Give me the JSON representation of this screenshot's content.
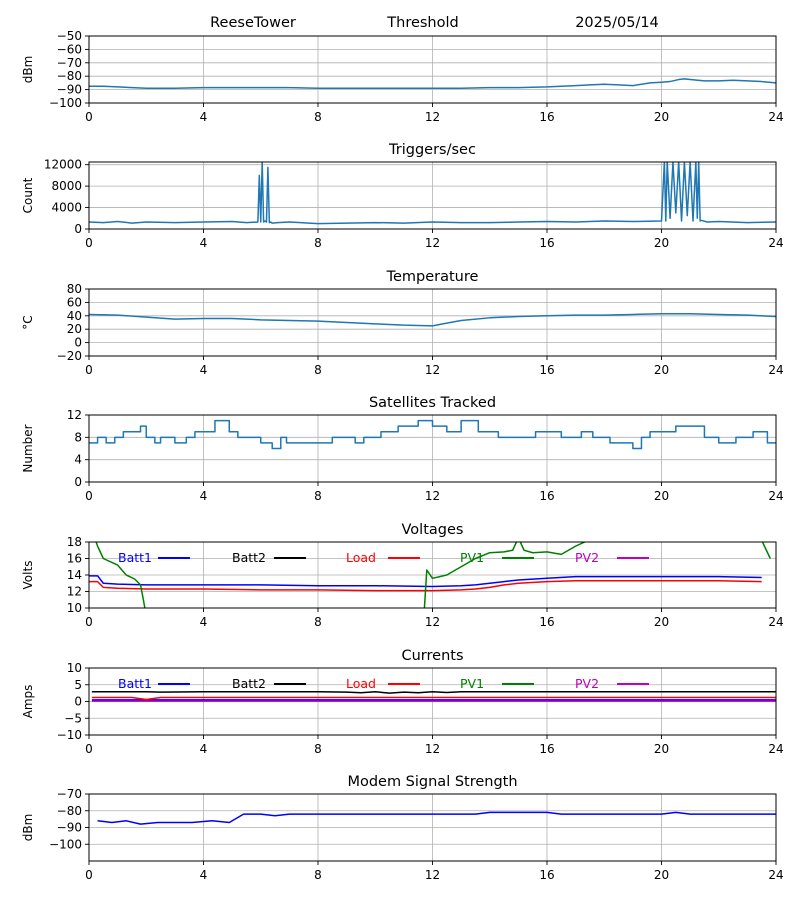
{
  "header": {
    "station": "ReeseTower",
    "measure": "Threshold",
    "date": "2025/05/14"
  },
  "colors": {
    "default_line": "#1f77b4",
    "grid": "#b0b0b0",
    "axis": "#000000"
  },
  "chart_data": [
    {
      "id": "threshold",
      "type": "line",
      "title": "",
      "ylabel": "dBm",
      "xlim": [
        0,
        24
      ],
      "ylim": [
        -100,
        -50
      ],
      "xticks": [
        0,
        4,
        8,
        12,
        16,
        20,
        24
      ],
      "yticks": [
        -100,
        -90,
        -80,
        -70,
        -60,
        -50
      ],
      "tick_labels": [
        "−100",
        "−90",
        "−80",
        "−70",
        "−60",
        "−50"
      ],
      "grid": true,
      "series": [
        {
          "color": "#1f77b4",
          "x": [
            0,
            0.5,
            1,
            2,
            3,
            4,
            5,
            6,
            7,
            8,
            9,
            10,
            11,
            12,
            13,
            14,
            15,
            16,
            16.5,
            17,
            17.5,
            18,
            18.5,
            19,
            19.3,
            19.6,
            20,
            20.3,
            20.6,
            20.8,
            21,
            21.5,
            22,
            22.5,
            23,
            23.5,
            24
          ],
          "y": [
            -87.5,
            -87.5,
            -88,
            -89,
            -89,
            -88.5,
            -88.5,
            -88.5,
            -88.5,
            -89,
            -89,
            -89,
            -89,
            -89,
            -89,
            -88.5,
            -88.5,
            -88,
            -87.5,
            -87,
            -86.5,
            -86,
            -86.5,
            -87,
            -86,
            -85,
            -84.5,
            -84,
            -82.5,
            -82,
            -82.5,
            -83.5,
            -83.5,
            -83,
            -83.5,
            -84,
            -85
          ]
        }
      ]
    },
    {
      "id": "triggers",
      "type": "line",
      "title": "Triggers/sec",
      "ylabel": "Count",
      "xlim": [
        0,
        24
      ],
      "ylim": [
        0,
        12500
      ],
      "xticks": [
        0,
        4,
        8,
        12,
        16,
        20,
        24
      ],
      "yticks": [
        0,
        4000,
        8000,
        12000
      ],
      "tick_labels": [
        "0",
        "4000",
        "8000",
        "12000"
      ],
      "grid": true,
      "series": [
        {
          "color": "#1f77b4",
          "x": [
            0,
            0.5,
            1,
            1.5,
            2,
            3,
            4,
            5,
            5.5,
            5.9,
            5.95,
            6.0,
            6.05,
            6.1,
            6.15,
            6.2,
            6.25,
            6.3,
            6.35,
            6.4,
            6.6,
            7,
            8,
            9,
            10,
            11,
            12,
            13,
            14,
            15,
            16,
            17,
            18,
            19,
            20,
            20.1,
            20.15,
            20.2,
            20.3,
            20.4,
            20.5,
            20.6,
            20.7,
            20.8,
            20.9,
            21.0,
            21.1,
            21.2,
            21.25,
            21.3,
            21.35,
            21.4,
            21.6,
            22,
            23,
            24
          ],
          "y": [
            1300,
            1200,
            1400,
            1100,
            1300,
            1200,
            1300,
            1400,
            1200,
            1300,
            10000,
            1300,
            12500,
            1300,
            1500,
            1300,
            11500,
            1200,
            1300,
            1100,
            1200,
            1300,
            1000,
            1100,
            1200,
            1100,
            1300,
            1200,
            1200,
            1300,
            1400,
            1300,
            1500,
            1400,
            1500,
            12500,
            1500,
            12500,
            2000,
            12500,
            3000,
            12500,
            1500,
            12500,
            2500,
            12500,
            1500,
            12500,
            2000,
            12500,
            1500,
            1600,
            1300,
            1400,
            1200,
            1300
          ]
        }
      ]
    },
    {
      "id": "temperature",
      "type": "line",
      "title": "Temperature",
      "ylabel": "°C",
      "xlim": [
        0,
        24
      ],
      "ylim": [
        -20,
        80
      ],
      "xticks": [
        0,
        4,
        8,
        12,
        16,
        20,
        24
      ],
      "yticks": [
        -20,
        0,
        20,
        40,
        60,
        80
      ],
      "tick_labels": [
        "−20",
        "0",
        "20",
        "40",
        "60",
        "80"
      ],
      "grid": true,
      "series": [
        {
          "color": "#1f77b4",
          "x": [
            0,
            1,
            2,
            3,
            4,
            5,
            6,
            7,
            8,
            9,
            10,
            11,
            12,
            12.5,
            13,
            14,
            15,
            16,
            17,
            18,
            19,
            20,
            21,
            22,
            23,
            24
          ],
          "y": [
            42,
            41,
            38,
            35,
            36,
            36,
            34,
            33,
            32,
            30,
            28,
            26,
            25,
            29,
            33,
            37,
            39,
            40,
            41,
            41,
            42,
            43,
            43,
            42,
            41,
            39
          ]
        }
      ]
    },
    {
      "id": "satellites",
      "type": "line",
      "title": "Satellites Tracked",
      "ylabel": "Number",
      "xlim": [
        0,
        24
      ],
      "ylim": [
        0,
        12
      ],
      "xticks": [
        0,
        4,
        8,
        12,
        16,
        20,
        24
      ],
      "yticks": [
        0,
        4,
        8,
        12
      ],
      "tick_labels": [
        "0",
        "4",
        "8",
        "12"
      ],
      "grid": true,
      "series": [
        {
          "color": "#1f77b4",
          "x": [
            0,
            0.3,
            0.3,
            0.6,
            0.6,
            0.9,
            0.9,
            1.2,
            1.2,
            1.8,
            1.8,
            2.0,
            2.0,
            2.3,
            2.3,
            2.5,
            2.5,
            3.0,
            3.0,
            3.4,
            3.4,
            3.7,
            3.7,
            4.4,
            4.4,
            4.9,
            4.9,
            5.2,
            5.2,
            6.0,
            6.0,
            6.4,
            6.4,
            6.7,
            6.7,
            6.9,
            6.9,
            8.5,
            8.5,
            9.3,
            9.3,
            9.6,
            9.6,
            10.2,
            10.2,
            10.8,
            10.8,
            11.5,
            11.5,
            12.0,
            12.0,
            12.5,
            12.5,
            13.0,
            13.0,
            13.6,
            13.6,
            14.3,
            14.3,
            15.1,
            15.1,
            15.6,
            15.6,
            16.5,
            16.5,
            17.2,
            17.2,
            17.6,
            17.6,
            18.2,
            18.2,
            19.0,
            19.0,
            19.3,
            19.3,
            19.6,
            19.6,
            20.5,
            20.5,
            21.5,
            21.5,
            22.0,
            22.0,
            22.6,
            22.6,
            23.2,
            23.2,
            23.7,
            23.7,
            24.0
          ],
          "y": [
            7,
            7,
            8,
            8,
            7,
            7,
            8,
            8,
            9,
            9,
            10,
            10,
            8,
            8,
            7,
            7,
            8,
            8,
            7,
            7,
            8,
            8,
            9,
            9,
            11,
            11,
            9,
            9,
            8,
            8,
            7,
            7,
            6,
            6,
            8,
            8,
            7,
            7,
            8,
            8,
            7,
            7,
            8,
            8,
            9,
            9,
            10,
            10,
            11,
            11,
            10,
            10,
            9,
            9,
            11,
            11,
            9,
            9,
            8,
            8,
            8,
            8,
            9,
            9,
            8,
            8,
            9,
            9,
            8,
            8,
            7,
            7,
            6,
            6,
            8,
            8,
            9,
            9,
            10,
            10,
            8,
            8,
            7,
            7,
            8,
            8,
            9,
            9,
            7,
            7
          ]
        }
      ]
    },
    {
      "id": "voltages",
      "type": "line",
      "title": "Voltages",
      "ylabel": "Volts",
      "xlim": [
        0,
        24
      ],
      "ylim": [
        10,
        18
      ],
      "xticks": [
        0,
        4,
        8,
        12,
        16,
        20,
        24
      ],
      "yticks": [
        10,
        12,
        14,
        16,
        18
      ],
      "tick_labels": [
        "10",
        "12",
        "14",
        "16",
        "18"
      ],
      "grid": true,
      "series": [
        {
          "name": "Batt1",
          "color": "#0000ff",
          "x": [
            0,
            0.3,
            0.5,
            1,
            2,
            4,
            6,
            8,
            10,
            12,
            13,
            13.5,
            14,
            14.5,
            15,
            16,
            17,
            18,
            20,
            22,
            23.5
          ],
          "y": [
            13.9,
            13.9,
            13.0,
            12.9,
            12.8,
            12.8,
            12.8,
            12.7,
            12.7,
            12.6,
            12.7,
            12.8,
            13.0,
            13.2,
            13.4,
            13.6,
            13.8,
            13.8,
            13.8,
            13.8,
            13.7
          ]
        },
        {
          "name": "Batt2",
          "color": "#000000",
          "x": [],
          "y": []
        },
        {
          "name": "Load",
          "color": "#ff0000",
          "x": [
            0,
            0.3,
            0.5,
            1,
            2,
            4,
            6,
            8,
            10,
            12,
            13,
            13.5,
            14,
            14.5,
            15,
            16,
            17,
            18,
            20,
            22,
            23.5
          ],
          "y": [
            13.2,
            13.2,
            12.5,
            12.4,
            12.3,
            12.3,
            12.2,
            12.2,
            12.1,
            12.1,
            12.2,
            12.3,
            12.5,
            12.8,
            13.0,
            13.2,
            13.3,
            13.3,
            13.3,
            13.3,
            13.2
          ]
        },
        {
          "name": "PV1",
          "color": "#008000",
          "x": [
            0.2,
            0.3,
            0.5,
            1.0,
            1.3,
            1.6,
            1.8,
            1.9,
            2.0,
            11.7,
            11.8,
            12.0,
            12.5,
            13.0,
            13.5,
            14.0,
            14.5,
            14.8,
            15.0,
            15.2,
            15.5,
            16.0,
            16.5,
            17.0,
            17.5,
            18.0,
            18.5,
            19.0,
            23.5,
            23.8
          ],
          "y": [
            18.5,
            17.5,
            16.0,
            15.2,
            14.0,
            13.5,
            12.8,
            11.0,
            9.0,
            9.0,
            14.6,
            13.6,
            14.0,
            15.0,
            16.0,
            16.7,
            16.8,
            17.0,
            18.5,
            17.0,
            16.7,
            16.8,
            16.5,
            17.5,
            18.3,
            18.8,
            19.0,
            19.5,
            18.2,
            16.0
          ]
        },
        {
          "name": "PV2",
          "color": "#bf00bf",
          "x": [],
          "y": []
        }
      ],
      "legend": "top-inline"
    },
    {
      "id": "currents",
      "type": "line",
      "title": "Currents",
      "ylabel": "Amps",
      "xlim": [
        0,
        24
      ],
      "ylim": [
        -10,
        10
      ],
      "xticks": [
        0,
        4,
        8,
        12,
        16,
        20,
        24
      ],
      "yticks": [
        -10,
        -5,
        0,
        5,
        10
      ],
      "tick_labels": [
        "−10",
        "−5",
        "0",
        "5",
        "10"
      ],
      "grid": true,
      "series": [
        {
          "name": "Batt1",
          "color": "#0000ff",
          "x": [
            0.1,
            24
          ],
          "y": [
            0.5,
            0.5
          ]
        },
        {
          "name": "Batt2",
          "color": "#000000",
          "x": [
            0.1,
            2,
            2.5,
            4,
            8,
            9,
            9.5,
            10,
            10.5,
            11,
            11.5,
            12,
            12.5,
            13,
            24
          ],
          "y": [
            2.9,
            2.9,
            2.8,
            2.9,
            2.9,
            2.8,
            2.6,
            2.9,
            2.5,
            2.8,
            2.6,
            2.9,
            2.7,
            2.9,
            2.9
          ]
        },
        {
          "name": "Load",
          "color": "#ff0000",
          "x": [
            0.1,
            1.5,
            2,
            2.5,
            4,
            24
          ],
          "y": [
            1.2,
            1.2,
            0.6,
            1.2,
            1.2,
            1.2
          ]
        },
        {
          "name": "PV1",
          "color": "#008000",
          "x": [],
          "y": []
        },
        {
          "name": "PV2",
          "color": "#bf00bf",
          "x": [
            0.1,
            24
          ],
          "y": [
            0.1,
            0.1
          ]
        }
      ],
      "legend": "top-inline"
    },
    {
      "id": "modem",
      "type": "line",
      "title": "Modem Signal Strength",
      "ylabel": "dBm",
      "xlim": [
        0,
        24
      ],
      "ylim": [
        -110,
        -70
      ],
      "xticks": [
        0,
        4,
        8,
        12,
        16,
        20,
        24
      ],
      "yticks": [
        -100,
        -90,
        -80,
        -70
      ],
      "tick_labels": [
        "−100",
        "−90",
        "−80",
        "−70"
      ],
      "grid": true,
      "series": [
        {
          "color": "#0000ff",
          "x": [
            0.3,
            0.8,
            1.3,
            1.8,
            2.4,
            3.0,
            3.6,
            4.3,
            4.9,
            5.4,
            6.0,
            6.5,
            7.0,
            8.0,
            9.0,
            10.0,
            11.0,
            12.0,
            13.0,
            13.5,
            14.0,
            15.0,
            16.0,
            16.5,
            17.0,
            18.0,
            19.0,
            20.0,
            20.5,
            21.0,
            22.0,
            23.0,
            24.0
          ],
          "y": [
            -86,
            -87,
            -86,
            -88,
            -87,
            -87,
            -87,
            -86,
            -87,
            -82,
            -82,
            -83,
            -82,
            -82,
            -82,
            -82,
            -82,
            -82,
            -82,
            -82,
            -81,
            -81,
            -81,
            -82,
            -82,
            -82,
            -82,
            -82,
            -81,
            -82,
            -82,
            -82,
            -82
          ]
        }
      ]
    }
  ]
}
